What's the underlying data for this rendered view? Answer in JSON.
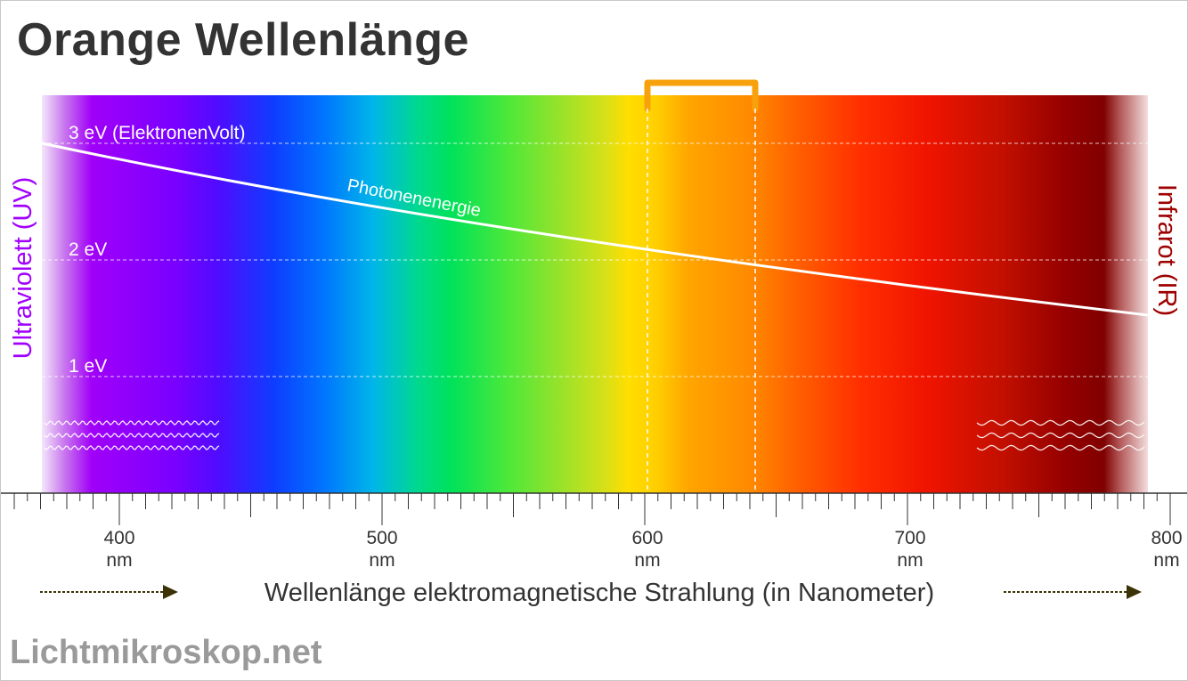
{
  "title": "Orange Wellenlänge",
  "watermark": "Lichtmikroskop.net",
  "labels": {
    "uv": "Ultraviolett (UV)",
    "ir": "Infrarot (IR)",
    "photon_energy": "Photonenenergie",
    "ev3": "3 eV (ElektronenVolt)",
    "ev2": "2 eV",
    "ev1": "1 eV",
    "axis": "Wellenlänge elektromagnetische Strahlung (in Nanometer)"
  },
  "ticks": [
    {
      "value": "400",
      "unit": "nm"
    },
    {
      "value": "500",
      "unit": "nm"
    },
    {
      "value": "600",
      "unit": "nm"
    },
    {
      "value": "700",
      "unit": "nm"
    },
    {
      "value": "800",
      "unit": "nm"
    }
  ],
  "highlight": {
    "from_nm": 600,
    "to_nm": 640,
    "color": "#f7a10c"
  },
  "wavelength_range_nm": [
    370,
    790
  ],
  "colors": {
    "uv_label": "#a100ff",
    "ir_label": "#9d0000",
    "title": "#333333",
    "watermark": "#9a9a9a"
  }
}
